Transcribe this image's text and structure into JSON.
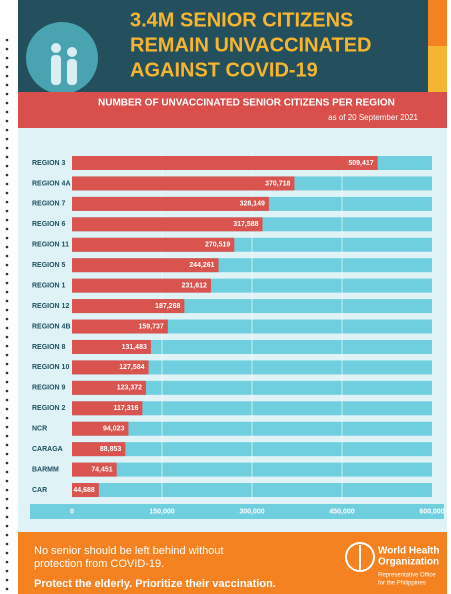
{
  "chart_data": {
    "type": "bar",
    "orientation": "horizontal",
    "title": [
      "3.4M SENIOR CITIZENS",
      "REMAIN UNVACCINATED",
      "AGAINST COVID-19"
    ],
    "subtitle": "NUMBER OF UNVACCINATED SENIOR CITIZENS PER REGION",
    "note": "as of 20 September 2021",
    "categories": [
      "REGION 3",
      "REGION 4A",
      "REGION 7",
      "REGION 6",
      "REGION 11",
      "REGION 5",
      "REGION 1",
      "REGION 12",
      "REGION 4B",
      "REGION 8",
      "REGION 10",
      "REGION 9",
      "REGION 2",
      "NCR",
      "CARAGA",
      "BARMM",
      "CAR"
    ],
    "values": [
      509417,
      370718,
      328149,
      317588,
      270519,
      244261,
      231612,
      187268,
      159737,
      131483,
      127584,
      123372,
      117316,
      94023,
      88853,
      74451,
      44688
    ],
    "value_labels": [
      "509,417",
      "370,718",
      "328,149",
      "317,588",
      "270,519",
      "244,261",
      "231,612",
      "187,268",
      "159,737",
      "131,483",
      "127,584",
      "123,372",
      "117,316",
      "94,023",
      "88,853",
      "74,451",
      "44,688"
    ],
    "color": "#d9534f",
    "track_color": "#6fcfdf",
    "xlim": [
      0,
      600000
    ],
    "xticks": [
      0,
      {
        "value": 150000,
        "label": "150,000"
      },
      {
        "value": 300000,
        "label": "300,000"
      },
      {
        "value": 450000,
        "label": "450,000"
      },
      {
        "value": 600000,
        "label": "600,000"
      }
    ],
    "grid": true
  },
  "footer": {
    "message": [
      "No senior should be left behind without",
      "protection from COVID-19."
    ],
    "slogan": "Protect the elderly. Prioritize their vaccination.",
    "org_name": [
      "World Health",
      "Organization"
    ],
    "org_office": [
      "Representative Office",
      "for the Philippines"
    ]
  }
}
